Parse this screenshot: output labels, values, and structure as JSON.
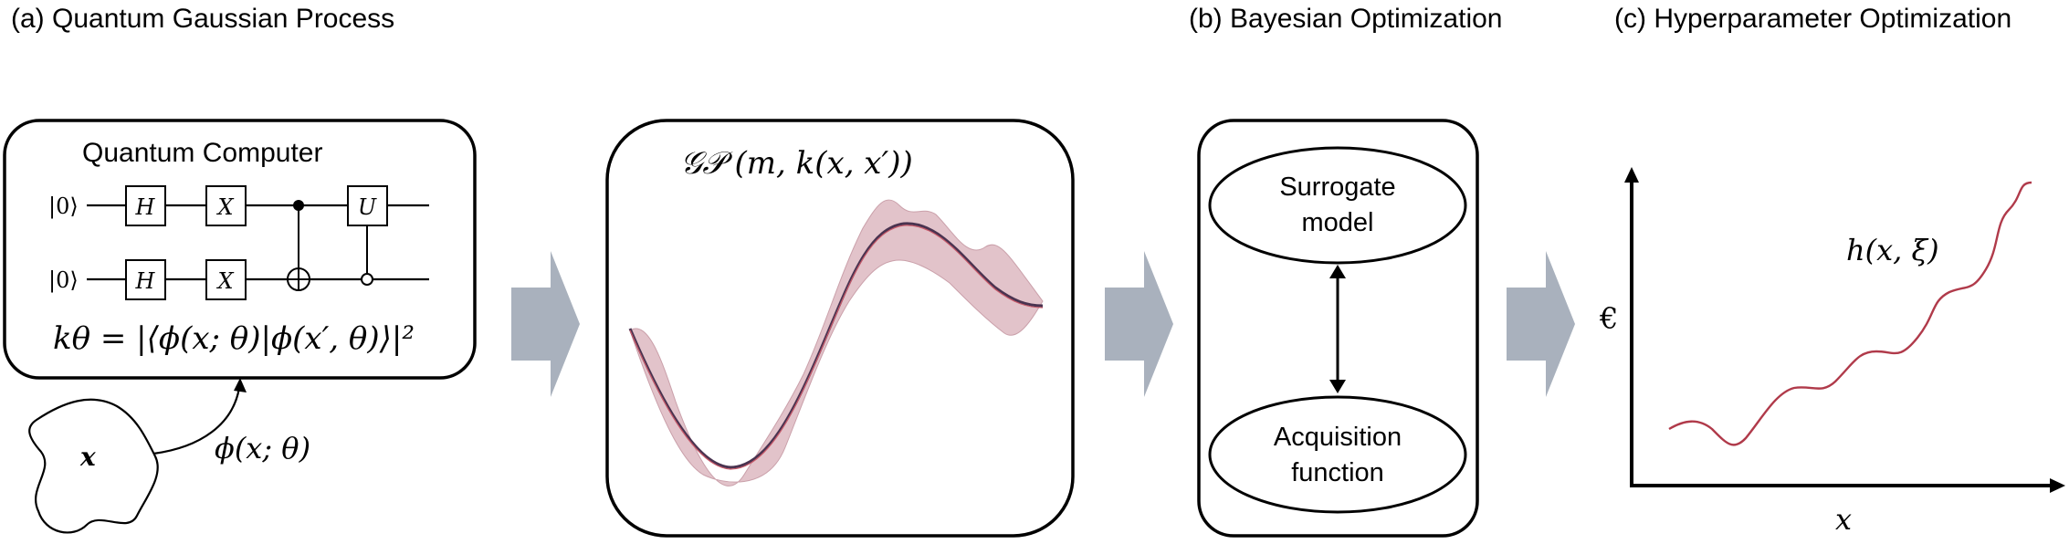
{
  "panels": {
    "a": {
      "title": "(a) Quantum Gaussian Process",
      "computer_label": "Quantum Computer",
      "qubit_label": "|0⟩",
      "gate_h": "H",
      "gate_x": "X",
      "gate_u": "U",
      "kernel_formula": "kθ = |⟨ϕ(x; θ)|ϕ(x′, θ)⟩|²",
      "input_label": "x",
      "feature_map": "ϕ(x; θ)"
    },
    "gp": {
      "formula": "𝒢𝒫 (m, k(x, x′))"
    },
    "b": {
      "title": "(b) Bayesian Optimization",
      "surrogate_line1": "Surrogate",
      "surrogate_line2": "model",
      "acquisition_line1": "Acquisition",
      "acquisition_line2": "function"
    },
    "c": {
      "title": "(c) Hyperparameter Optimization",
      "function_label": "h(x, ξ)",
      "y_axis_label": "€",
      "x_axis_label": "x"
    }
  },
  "colors": {
    "stroke": "#000000",
    "arrow_fill": "#a9b1bd",
    "gp_band": "#d6aab4",
    "gp_mean": "#4a3350",
    "curve": "#b03a4a"
  }
}
